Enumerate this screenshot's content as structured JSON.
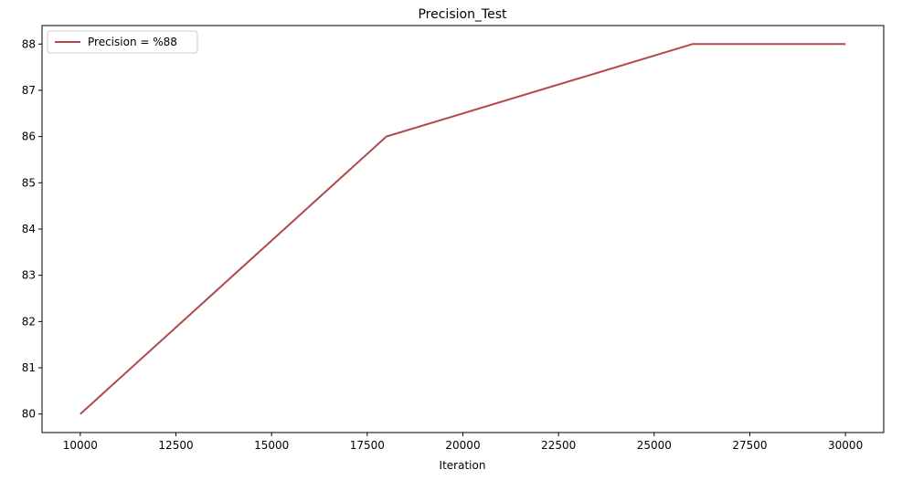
{
  "chart_data": {
    "type": "line",
    "title": "Precision_Test",
    "xlabel": "Iteration",
    "ylabel": "",
    "xlim": [
      9000,
      31000
    ],
    "ylim": [
      79.6,
      88.4
    ],
    "xticks": [
      10000,
      12500,
      15000,
      17500,
      20000,
      22500,
      25000,
      27500,
      30000
    ],
    "yticks": [
      80,
      81,
      82,
      83,
      84,
      85,
      86,
      87,
      88
    ],
    "grid": false,
    "legend_position": "top-left",
    "series": [
      {
        "name": "Precision = %88",
        "color": "#b5484b",
        "x": [
          10000,
          18000,
          26000,
          30000
        ],
        "y": [
          80,
          86,
          88,
          88
        ]
      }
    ]
  }
}
